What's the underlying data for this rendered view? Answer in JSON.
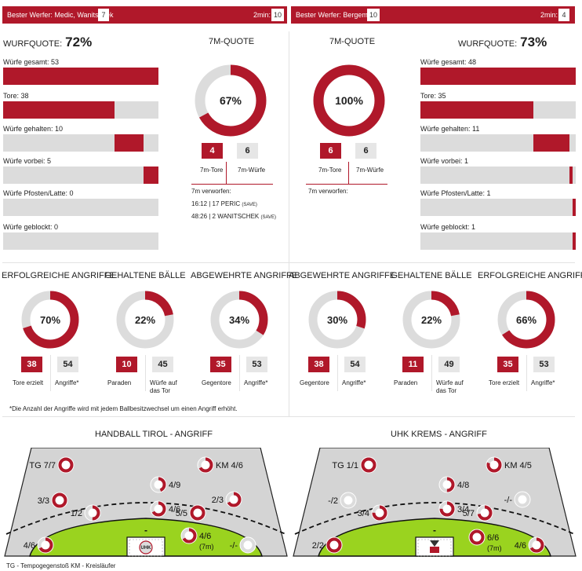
{
  "header": {
    "left": {
      "best_label": "Bester Werfer: Medic, Wanitschek",
      "best_value": "7",
      "twomin_label": "2min:",
      "twomin_value": "10"
    },
    "right": {
      "best_label": "Bester Werfer: Bergemann",
      "best_value": "10",
      "twomin_label": "2min:",
      "twomin_value": "4"
    }
  },
  "left": {
    "wurfquote_label": "Wurfquote:",
    "wurfquote_value": "72%",
    "stats": [
      {
        "label": "Würfe gesamt: 53",
        "fraction": 1.0
      },
      {
        "label": "Tore: 38",
        "fraction": 0.717
      },
      {
        "label": "Würfe gehalten: 10",
        "fraction": 0.189
      },
      {
        "label": "Würfe vorbei: 5",
        "fraction": 0.094
      },
      {
        "label": "Würfe Pfosten/Latte: 0",
        "fraction": 0
      },
      {
        "label": "Würfe geblockt: 0",
        "fraction": 0
      }
    ],
    "seven_m": {
      "title": "7M-Quote",
      "percent_label": "67%",
      "fraction": 0.67,
      "tore": "4",
      "wuerfe": "6",
      "tore_label": "7m-Tore",
      "wuerfe_label": "7m-Würfe",
      "verworfen_label": "7m verworfen:",
      "misses": [
        "16:12 | 17 PERIC",
        "48:26 | 2 WANITSCHEK"
      ],
      "miss_tag": "(SAVE)"
    }
  },
  "right": {
    "wurfquote_label": "Wurfquote:",
    "wurfquote_value": "73%",
    "stats": [
      {
        "label": "Würfe gesamt: 48",
        "fraction": 1.0
      },
      {
        "label": "Tore: 35",
        "fraction": 0.729
      },
      {
        "label": "Würfe gehalten: 11",
        "fraction": 0.229
      },
      {
        "label": "Würfe vorbei: 1",
        "fraction": 0.021
      },
      {
        "label": "Würfe Pfosten/Latte: 1",
        "fraction": 0.021
      },
      {
        "label": "Würfe geblockt: 1",
        "fraction": 0.021
      }
    ],
    "seven_m": {
      "title": "7M-Quote",
      "percent_label": "100%",
      "fraction": 1.0,
      "tore": "6",
      "wuerfe": "6",
      "tore_label": "7m-Tore",
      "wuerfe_label": "7m-Würfe",
      "verworfen_label": "7m verworfen:"
    }
  },
  "mid": {
    "left": [
      {
        "title": "Erfolgreiche Angriffe",
        "percent_label": "70%",
        "fraction": 0.7,
        "a": "38",
        "b": "54",
        "a_label": "Tore erzielt",
        "b_label": "Angriffe*"
      },
      {
        "title": "Gehaltene Bälle",
        "percent_label": "22%",
        "fraction": 0.22,
        "a": "10",
        "b": "45",
        "a_label": "Paraden",
        "b_label": "Würfe auf das Tor"
      },
      {
        "title": "Abgewehrte Angriffe",
        "percent_label": "34%",
        "fraction": 0.34,
        "a": "35",
        "b": "53",
        "a_label": "Gegentore",
        "b_label": "Angriffe*"
      }
    ],
    "right": [
      {
        "title": "Abgewehrte Angriffe",
        "percent_label": "30%",
        "fraction": 0.3,
        "a": "38",
        "b": "54",
        "a_label": "Gegentore",
        "b_label": "Angriffe*"
      },
      {
        "title": "Gehaltene Bälle",
        "percent_label": "22%",
        "fraction": 0.22,
        "a": "11",
        "b": "49",
        "a_label": "Paraden",
        "b_label": "Würfe auf das Tor"
      },
      {
        "title": "Erfolgreiche Angriffe",
        "percent_label": "66%",
        "fraction": 0.66,
        "a": "35",
        "b": "53",
        "a_label": "Tore erzielt",
        "b_label": "Angriffe*"
      }
    ],
    "footnote": "*Die Anzahl der Angriffe wird mit jedem Ballbesitzwechsel um einen Angriff erhöht."
  },
  "courts": {
    "left": {
      "title": "Handball Tirol - Angriff",
      "goal_mark": "UHK",
      "zones": [
        {
          "label": "TG 7/7",
          "fraction": 1.0,
          "side": "left"
        },
        {
          "label": "KM 4/6",
          "fraction": 0.667,
          "side": "right"
        },
        {
          "label": "4/9",
          "fraction": 0.444,
          "side": "right"
        },
        {
          "label": "3/3",
          "fraction": 1.0,
          "side": "left"
        },
        {
          "label": "2/3",
          "fraction": 0.667,
          "side": "left"
        },
        {
          "label": "4/6",
          "fraction": 0.667,
          "side": "right"
        },
        {
          "label": "1/2",
          "fraction": 0.5,
          "side": "left"
        },
        {
          "label": "5/5",
          "fraction": 1.0,
          "side": "left"
        },
        {
          "label": "4/6",
          "fraction": 0.667,
          "side": "right",
          "sub": "(7m)"
        },
        {
          "label": "4/6",
          "fraction": 0.667,
          "side": "left"
        },
        {
          "label": "-/-",
          "fraction": 0,
          "side": "left"
        }
      ]
    },
    "right": {
      "title": "UHK Krems - Angriff",
      "goal_mark": "",
      "zones": [
        {
          "label": "TG 1/1",
          "fraction": 1.0,
          "side": "left"
        },
        {
          "label": "KM 4/5",
          "fraction": 0.8,
          "side": "right"
        },
        {
          "label": "4/8",
          "fraction": 0.5,
          "side": "right"
        },
        {
          "label": "-/2",
          "fraction": 0,
          "side": "left"
        },
        {
          "label": "-/-",
          "fraction": 0,
          "side": "left"
        },
        {
          "label": "3/4",
          "fraction": 0.75,
          "side": "left"
        },
        {
          "label": "3/4",
          "fraction": 0.75,
          "side": "right"
        },
        {
          "label": "5/7",
          "fraction": 0.714,
          "side": "left"
        },
        {
          "label": "6/6",
          "fraction": 1.0,
          "side": "right",
          "sub": "(7m)"
        },
        {
          "label": "2/2",
          "fraction": 1.0,
          "side": "left"
        },
        {
          "label": "4/6",
          "fraction": 0.667,
          "side": "left"
        }
      ]
    },
    "legend": "TG - Tempogegenstoß    KM - Kreisläufer"
  },
  "colors": {
    "accent": "#b0182a",
    "track": "#dcdcdc",
    "field": "#9ad31f",
    "court": "#d4d4d4"
  }
}
